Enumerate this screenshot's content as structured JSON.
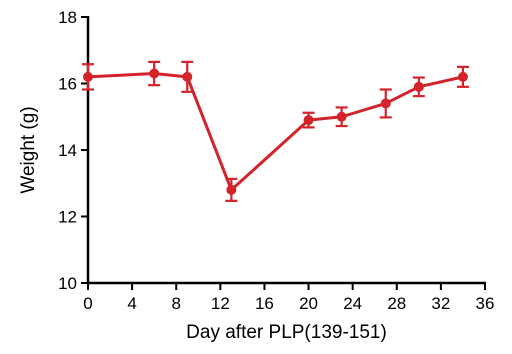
{
  "chart_data": {
    "type": "line",
    "xlabel": "Day after PLP(139-151)",
    "ylabel": "Weight (g)",
    "xlim": [
      0,
      36
    ],
    "ylim": [
      10,
      18
    ],
    "x_ticks": [
      0,
      4,
      8,
      12,
      16,
      20,
      24,
      28,
      32,
      36
    ],
    "y_ticks": [
      10,
      12,
      14,
      16,
      18
    ],
    "x_tick_labels": [
      "0",
      "4",
      "8",
      "12",
      "16",
      "20",
      "24",
      "28",
      "32",
      "36"
    ],
    "y_tick_labels": [
      "10",
      "12",
      "14",
      "16",
      "18"
    ],
    "grid": false,
    "series": [
      {
        "color": "#d3232b",
        "x": [
          0,
          6,
          9,
          13,
          20,
          23,
          27,
          30,
          34
        ],
        "y": [
          16.2,
          16.3,
          16.2,
          12.8,
          14.9,
          15.0,
          15.4,
          15.9,
          16.2
        ],
        "err": [
          0.38,
          0.35,
          0.45,
          0.33,
          0.22,
          0.28,
          0.42,
          0.28,
          0.3
        ]
      }
    ]
  }
}
